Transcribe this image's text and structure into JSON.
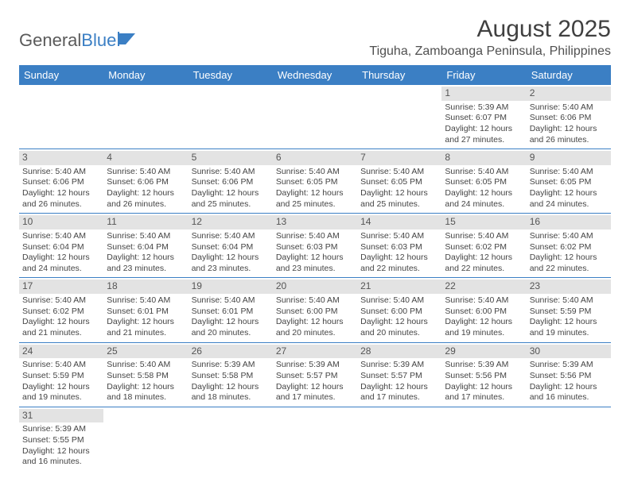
{
  "brand": {
    "part1": "General",
    "part2": "Blue"
  },
  "title": "August 2025",
  "location": "Tiguha, Zamboanga Peninsula, Philippines",
  "colors": {
    "header_bg": "#3b7fc4",
    "header_text": "#ffffff",
    "daynum_bg": "#e3e3e3",
    "row_border": "#3b7fc4",
    "body_text": "#444444"
  },
  "day_headers": [
    "Sunday",
    "Monday",
    "Tuesday",
    "Wednesday",
    "Thursday",
    "Friday",
    "Saturday"
  ],
  "weeks": [
    [
      {
        "n": "",
        "d": ""
      },
      {
        "n": "",
        "d": ""
      },
      {
        "n": "",
        "d": ""
      },
      {
        "n": "",
        "d": ""
      },
      {
        "n": "",
        "d": ""
      },
      {
        "n": "1",
        "d": "Sunrise: 5:39 AM\nSunset: 6:07 PM\nDaylight: 12 hours and 27 minutes."
      },
      {
        "n": "2",
        "d": "Sunrise: 5:40 AM\nSunset: 6:06 PM\nDaylight: 12 hours and 26 minutes."
      }
    ],
    [
      {
        "n": "3",
        "d": "Sunrise: 5:40 AM\nSunset: 6:06 PM\nDaylight: 12 hours and 26 minutes."
      },
      {
        "n": "4",
        "d": "Sunrise: 5:40 AM\nSunset: 6:06 PM\nDaylight: 12 hours and 26 minutes."
      },
      {
        "n": "5",
        "d": "Sunrise: 5:40 AM\nSunset: 6:06 PM\nDaylight: 12 hours and 25 minutes."
      },
      {
        "n": "6",
        "d": "Sunrise: 5:40 AM\nSunset: 6:05 PM\nDaylight: 12 hours and 25 minutes."
      },
      {
        "n": "7",
        "d": "Sunrise: 5:40 AM\nSunset: 6:05 PM\nDaylight: 12 hours and 25 minutes."
      },
      {
        "n": "8",
        "d": "Sunrise: 5:40 AM\nSunset: 6:05 PM\nDaylight: 12 hours and 24 minutes."
      },
      {
        "n": "9",
        "d": "Sunrise: 5:40 AM\nSunset: 6:05 PM\nDaylight: 12 hours and 24 minutes."
      }
    ],
    [
      {
        "n": "10",
        "d": "Sunrise: 5:40 AM\nSunset: 6:04 PM\nDaylight: 12 hours and 24 minutes."
      },
      {
        "n": "11",
        "d": "Sunrise: 5:40 AM\nSunset: 6:04 PM\nDaylight: 12 hours and 23 minutes."
      },
      {
        "n": "12",
        "d": "Sunrise: 5:40 AM\nSunset: 6:04 PM\nDaylight: 12 hours and 23 minutes."
      },
      {
        "n": "13",
        "d": "Sunrise: 5:40 AM\nSunset: 6:03 PM\nDaylight: 12 hours and 23 minutes."
      },
      {
        "n": "14",
        "d": "Sunrise: 5:40 AM\nSunset: 6:03 PM\nDaylight: 12 hours and 22 minutes."
      },
      {
        "n": "15",
        "d": "Sunrise: 5:40 AM\nSunset: 6:02 PM\nDaylight: 12 hours and 22 minutes."
      },
      {
        "n": "16",
        "d": "Sunrise: 5:40 AM\nSunset: 6:02 PM\nDaylight: 12 hours and 22 minutes."
      }
    ],
    [
      {
        "n": "17",
        "d": "Sunrise: 5:40 AM\nSunset: 6:02 PM\nDaylight: 12 hours and 21 minutes."
      },
      {
        "n": "18",
        "d": "Sunrise: 5:40 AM\nSunset: 6:01 PM\nDaylight: 12 hours and 21 minutes."
      },
      {
        "n": "19",
        "d": "Sunrise: 5:40 AM\nSunset: 6:01 PM\nDaylight: 12 hours and 20 minutes."
      },
      {
        "n": "20",
        "d": "Sunrise: 5:40 AM\nSunset: 6:00 PM\nDaylight: 12 hours and 20 minutes."
      },
      {
        "n": "21",
        "d": "Sunrise: 5:40 AM\nSunset: 6:00 PM\nDaylight: 12 hours and 20 minutes."
      },
      {
        "n": "22",
        "d": "Sunrise: 5:40 AM\nSunset: 6:00 PM\nDaylight: 12 hours and 19 minutes."
      },
      {
        "n": "23",
        "d": "Sunrise: 5:40 AM\nSunset: 5:59 PM\nDaylight: 12 hours and 19 minutes."
      }
    ],
    [
      {
        "n": "24",
        "d": "Sunrise: 5:40 AM\nSunset: 5:59 PM\nDaylight: 12 hours and 19 minutes."
      },
      {
        "n": "25",
        "d": "Sunrise: 5:40 AM\nSunset: 5:58 PM\nDaylight: 12 hours and 18 minutes."
      },
      {
        "n": "26",
        "d": "Sunrise: 5:39 AM\nSunset: 5:58 PM\nDaylight: 12 hours and 18 minutes."
      },
      {
        "n": "27",
        "d": "Sunrise: 5:39 AM\nSunset: 5:57 PM\nDaylight: 12 hours and 17 minutes."
      },
      {
        "n": "28",
        "d": "Sunrise: 5:39 AM\nSunset: 5:57 PM\nDaylight: 12 hours and 17 minutes."
      },
      {
        "n": "29",
        "d": "Sunrise: 5:39 AM\nSunset: 5:56 PM\nDaylight: 12 hours and 17 minutes."
      },
      {
        "n": "30",
        "d": "Sunrise: 5:39 AM\nSunset: 5:56 PM\nDaylight: 12 hours and 16 minutes."
      }
    ],
    [
      {
        "n": "31",
        "d": "Sunrise: 5:39 AM\nSunset: 5:55 PM\nDaylight: 12 hours and 16 minutes."
      },
      {
        "n": "",
        "d": ""
      },
      {
        "n": "",
        "d": ""
      },
      {
        "n": "",
        "d": ""
      },
      {
        "n": "",
        "d": ""
      },
      {
        "n": "",
        "d": ""
      },
      {
        "n": "",
        "d": ""
      }
    ]
  ]
}
